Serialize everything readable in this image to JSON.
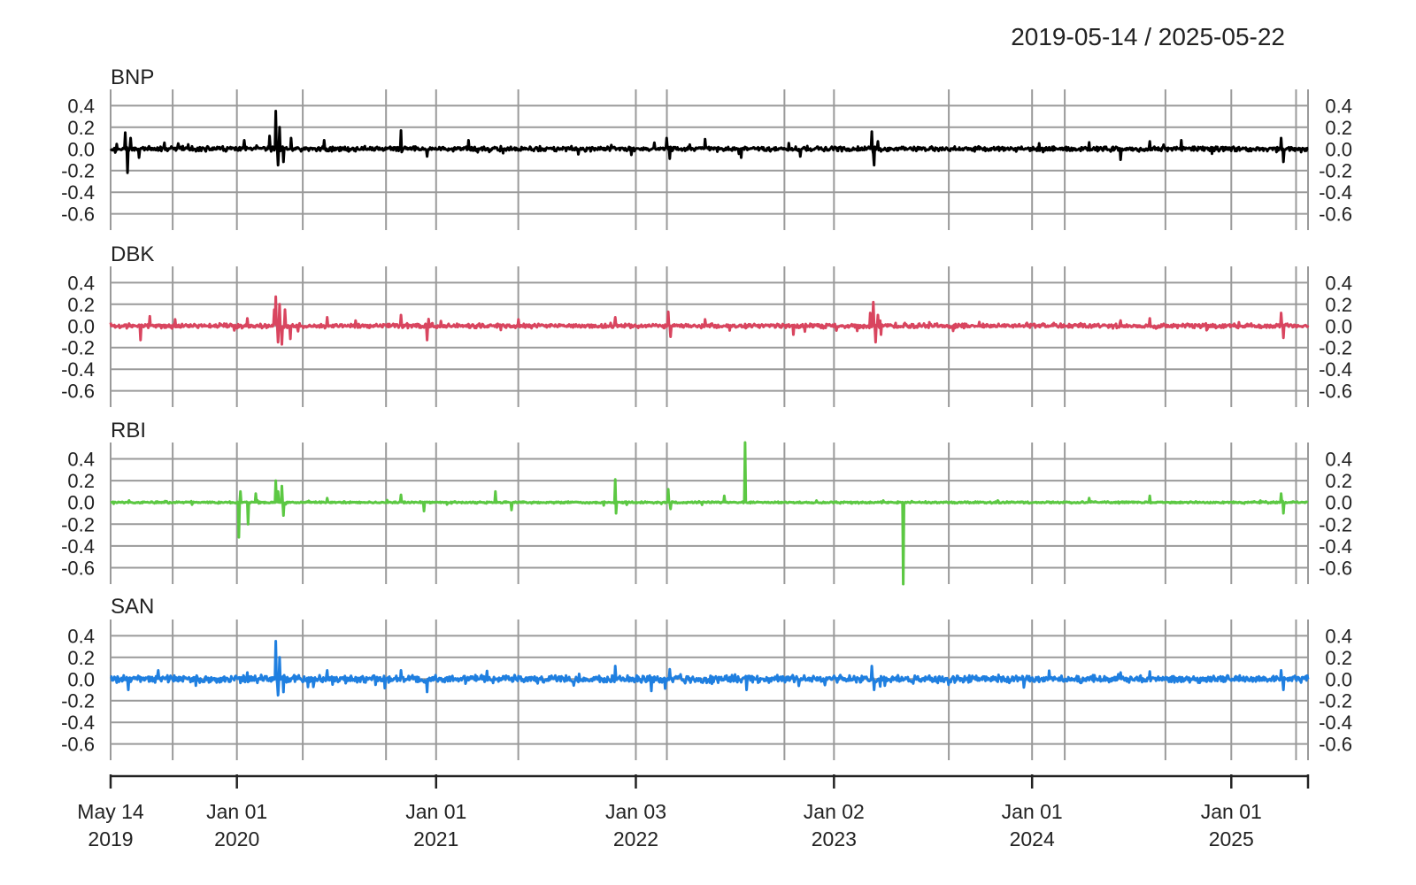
{
  "header": {
    "date_range": "2019-05-14 / 2025-05-22"
  },
  "chart_data": {
    "type": "line",
    "title": "",
    "layout": "stacked-panels",
    "x_range": [
      "2019-05-14",
      "2025-05-22"
    ],
    "x_ticks": [
      {
        "date": "2019-05-14",
        "line1": "May 14",
        "line2": "2019"
      },
      {
        "date": "2020-01-01",
        "line1": "Jan 01",
        "line2": "2020"
      },
      {
        "date": "2021-01-01",
        "line1": "Jan 01",
        "line2": "2021"
      },
      {
        "date": "2022-01-03",
        "line1": "Jan 03",
        "line2": "2022"
      },
      {
        "date": "2023-01-02",
        "line1": "Jan 02",
        "line2": "2023"
      },
      {
        "date": "2024-01-01",
        "line1": "Jan 01",
        "line2": "2024"
      },
      {
        "date": "2025-01-01",
        "line1": "Jan 01",
        "line2": "2025"
      },
      {
        "date": "2025-05-22",
        "line1": "",
        "line2": ""
      }
    ],
    "y_ticks": [
      0.4,
      0.2,
      0.0,
      -0.2,
      -0.4,
      -0.6
    ],
    "y_tick_labels": [
      "0.4",
      "0.2",
      "0.0",
      "-0.2",
      "-0.4",
      "-0.6"
    ],
    "ylim": [
      -0.75,
      0.55
    ],
    "grid": true,
    "panels": [
      {
        "name": "BNP",
        "color": "#000000",
        "noise": 0.016,
        "points": [
          [
            "2019-05-14",
            0.0
          ],
          [
            "2019-06-10",
            0.15
          ],
          [
            "2019-06-14",
            -0.22
          ],
          [
            "2019-06-20",
            0.1
          ],
          [
            "2019-07-05",
            -0.08
          ],
          [
            "2019-09-15",
            0.05
          ],
          [
            "2020-01-15",
            0.08
          ],
          [
            "2020-03-01",
            0.12
          ],
          [
            "2020-03-12",
            0.35
          ],
          [
            "2020-03-16",
            -0.15
          ],
          [
            "2020-03-20",
            0.2
          ],
          [
            "2020-03-26",
            -0.12
          ],
          [
            "2020-04-10",
            0.1
          ],
          [
            "2020-06-10",
            0.08
          ],
          [
            "2020-10-28",
            0.17
          ],
          [
            "2020-12-15",
            -0.07
          ],
          [
            "2021-03-01",
            0.08
          ],
          [
            "2021-09-20",
            -0.05
          ],
          [
            "2022-03-01",
            0.1
          ],
          [
            "2022-03-07",
            -0.09
          ],
          [
            "2022-05-10",
            0.09
          ],
          [
            "2022-07-15",
            -0.08
          ],
          [
            "2022-11-01",
            -0.07
          ],
          [
            "2023-03-13",
            0.16
          ],
          [
            "2023-03-17",
            -0.15
          ],
          [
            "2023-03-24",
            0.07
          ],
          [
            "2024-04-15",
            0.06
          ],
          [
            "2024-06-12",
            -0.1
          ],
          [
            "2024-08-05",
            0.07
          ],
          [
            "2024-10-01",
            0.08
          ],
          [
            "2025-04-03",
            0.1
          ],
          [
            "2025-04-07",
            -0.12
          ],
          [
            "2025-05-10",
            -0.03
          ]
        ]
      },
      {
        "name": "DBK",
        "color": "#d9455f",
        "noise": 0.015,
        "points": [
          [
            "2019-05-14",
            0.03
          ],
          [
            "2019-07-08",
            -0.13
          ],
          [
            "2019-09-10",
            0.06
          ],
          [
            "2020-01-20",
            0.07
          ],
          [
            "2020-03-09",
            0.15
          ],
          [
            "2020-03-12",
            0.27
          ],
          [
            "2020-03-16",
            -0.15
          ],
          [
            "2020-03-19",
            0.2
          ],
          [
            "2020-03-24",
            -0.17
          ],
          [
            "2020-03-30",
            0.15
          ],
          [
            "2020-04-08",
            -0.12
          ],
          [
            "2020-06-15",
            0.08
          ],
          [
            "2020-10-28",
            0.1
          ],
          [
            "2020-12-15",
            -0.13
          ],
          [
            "2021-06-01",
            0.06
          ],
          [
            "2021-11-26",
            0.08
          ],
          [
            "2022-03-04",
            0.13
          ],
          [
            "2022-03-08",
            -0.1
          ],
          [
            "2022-05-10",
            0.06
          ],
          [
            "2022-10-20",
            -0.08
          ],
          [
            "2023-03-10",
            0.12
          ],
          [
            "2023-03-15",
            0.22
          ],
          [
            "2023-03-20",
            -0.15
          ],
          [
            "2023-03-24",
            0.1
          ],
          [
            "2023-03-29",
            -0.08
          ],
          [
            "2024-06-12",
            0.05
          ],
          [
            "2024-08-05",
            0.07
          ],
          [
            "2025-04-03",
            0.12
          ],
          [
            "2025-04-07",
            -0.11
          ]
        ]
      },
      {
        "name": "RBI",
        "color": "#5cc843",
        "noise": 0.006,
        "points": [
          [
            "2019-05-14",
            0.0
          ],
          [
            "2019-10-10",
            -0.02
          ],
          [
            "2020-01-05",
            -0.32
          ],
          [
            "2020-01-08",
            0.1
          ],
          [
            "2020-01-22",
            -0.2
          ],
          [
            "2020-02-05",
            0.08
          ],
          [
            "2020-03-12",
            0.2
          ],
          [
            "2020-03-17",
            0.1
          ],
          [
            "2020-03-24",
            0.15
          ],
          [
            "2020-03-27",
            -0.12
          ],
          [
            "2020-06-15",
            0.04
          ],
          [
            "2020-10-28",
            0.07
          ],
          [
            "2020-12-10",
            -0.08
          ],
          [
            "2021-04-20",
            0.1
          ],
          [
            "2021-05-20",
            -0.07
          ],
          [
            "2021-11-26",
            0.21
          ],
          [
            "2021-11-28",
            -0.1
          ],
          [
            "2022-03-03",
            0.12
          ],
          [
            "2022-03-08",
            -0.06
          ],
          [
            "2022-06-15",
            0.06
          ],
          [
            "2022-07-22",
            0.55
          ],
          [
            "2023-05-10",
            -0.75
          ],
          [
            "2023-05-12",
            0.0
          ],
          [
            "2024-04-15",
            0.04
          ],
          [
            "2024-08-05",
            0.06
          ],
          [
            "2025-04-03",
            0.08
          ],
          [
            "2025-04-07",
            -0.1
          ]
        ]
      },
      {
        "name": "SAN",
        "color": "#1f7fe0",
        "noise": 0.025,
        "points": [
          [
            "2019-05-14",
            0.02
          ],
          [
            "2019-06-15",
            -0.1
          ],
          [
            "2019-08-10",
            0.08
          ],
          [
            "2020-01-20",
            0.06
          ],
          [
            "2020-03-12",
            0.35
          ],
          [
            "2020-03-16",
            -0.15
          ],
          [
            "2020-03-20",
            0.2
          ],
          [
            "2020-03-26",
            -0.12
          ],
          [
            "2020-06-15",
            0.08
          ],
          [
            "2020-10-28",
            0.08
          ],
          [
            "2020-12-15",
            -0.12
          ],
          [
            "2021-11-26",
            0.12
          ],
          [
            "2022-03-07",
            0.09
          ],
          [
            "2022-07-25",
            -0.1
          ],
          [
            "2023-03-13",
            0.12
          ],
          [
            "2023-03-17",
            -0.1
          ],
          [
            "2024-06-12",
            0.06
          ],
          [
            "2024-08-05",
            0.07
          ],
          [
            "2025-04-03",
            0.08
          ],
          [
            "2025-04-07",
            -0.1
          ]
        ]
      }
    ]
  }
}
